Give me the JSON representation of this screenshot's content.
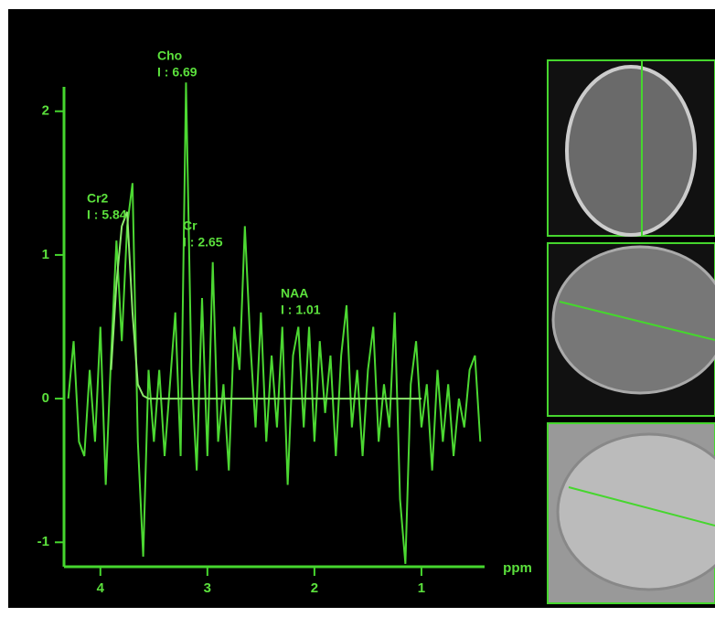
{
  "chart_data": {
    "type": "line",
    "x_label": "ppm",
    "reverse_x": true,
    "x": [
      4.3,
      4.25,
      4.2,
      4.15,
      4.1,
      4.05,
      4,
      3.95,
      3.9,
      3.85,
      3.8,
      3.75,
      3.7,
      3.65,
      3.6,
      3.55,
      3.5,
      3.45,
      3.4,
      3.35,
      3.3,
      3.25,
      3.2,
      3.15,
      3.1,
      3.05,
      3,
      2.95,
      2.9,
      2.85,
      2.8,
      2.75,
      2.7,
      2.65,
      2.6,
      2.55,
      2.5,
      2.45,
      2.4,
      2.35,
      2.3,
      2.25,
      2.2,
      2.15,
      2.1,
      2.05,
      2,
      1.95,
      1.9,
      1.85,
      1.8,
      1.75,
      1.7,
      1.65,
      1.6,
      1.55,
      1.5,
      1.45,
      1.4,
      1.35,
      1.3,
      1.25,
      1.2,
      1.15,
      1.1,
      1.05,
      1,
      0.95,
      0.9,
      0.85,
      0.8,
      0.75,
      0.7,
      0.65,
      0.6,
      0.55,
      0.5,
      0.45
    ],
    "series": [
      {
        "color": "#4cd832",
        "values": [
          0,
          0.4,
          -0.3,
          -0.4,
          0.2,
          -0.3,
          0.5,
          -0.6,
          0.3,
          1.1,
          0.4,
          1.2,
          1.5,
          -0.3,
          -1.1,
          0.2,
          -0.3,
          0.2,
          -0.4,
          0.1,
          0.6,
          -0.4,
          2.2,
          0.2,
          -0.5,
          0.7,
          -0.4,
          0.95,
          -0.3,
          0.1,
          -0.5,
          0.5,
          0.2,
          1.2,
          0.4,
          -0.2,
          0.6,
          -0.3,
          0.3,
          -0.2,
          0.5,
          -0.6,
          0.3,
          0.5,
          -0.2,
          0.5,
          -0.3,
          0.4,
          -0.1,
          0.3,
          -0.4,
          0.3,
          0.65,
          -0.2,
          0.2,
          -0.4,
          0.2,
          0.5,
          -0.3,
          0.1,
          -0.2,
          0.6,
          -0.7,
          -1.15,
          0.1,
          0.4,
          -0.2,
          0.1,
          -0.5,
          0.2,
          -0.3,
          0.1,
          -0.4,
          0,
          -0.2,
          0.2,
          0.3,
          -0.3
        ]
      },
      {
        "color": "#8ce86c",
        "values": [
          null,
          null,
          null,
          null,
          null,
          null,
          null,
          null,
          0.2,
          0.8,
          1.2,
          1.3,
          0.6,
          0.1,
          0.02,
          0,
          0,
          0,
          0,
          0,
          0,
          0,
          0,
          0,
          0,
          0,
          0,
          0,
          0,
          0,
          0,
          0,
          0,
          0,
          0,
          0,
          0,
          0,
          0,
          0,
          0,
          0,
          0,
          0,
          0,
          0,
          0,
          0,
          0,
          0,
          0,
          0,
          0,
          0,
          0,
          0,
          0,
          0,
          0,
          0,
          0,
          0,
          0,
          0,
          0,
          0,
          0,
          null,
          null,
          null,
          null,
          null,
          null,
          null,
          null,
          null,
          null,
          null
        ]
      }
    ],
    "xlim": [
      4.34,
      0.41
    ],
    "xticks": [
      4,
      3,
      2,
      1
    ],
    "ylim": [
      -1.17,
      2.17
    ],
    "yticks": [
      -1,
      0,
      1,
      2
    ],
    "annotations": [
      [
        "Cho",
        "I : 6.69"
      ],
      [
        "Cr2",
        "I : 5.84"
      ],
      [
        "Cr",
        "I : 2.65"
      ],
      [
        "NAA",
        "I : 1.01"
      ]
    ]
  }
}
